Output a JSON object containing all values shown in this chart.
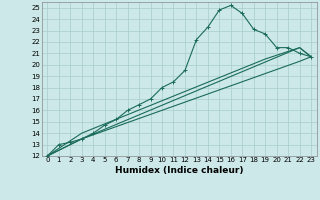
{
  "xlabel": "Humidex (Indice chaleur)",
  "xlim": [
    -0.5,
    23.5
  ],
  "ylim": [
    12,
    25.5
  ],
  "xticks": [
    0,
    1,
    2,
    3,
    4,
    5,
    6,
    7,
    8,
    9,
    10,
    11,
    12,
    13,
    14,
    15,
    16,
    17,
    18,
    19,
    20,
    21,
    22,
    23
  ],
  "yticks": [
    12,
    13,
    14,
    15,
    16,
    17,
    18,
    19,
    20,
    21,
    22,
    23,
    24,
    25
  ],
  "bg_color": "#cce8e8",
  "grid_color": "#a8cccc",
  "line_color": "#1a6b5a",
  "line1_x": [
    0,
    1,
    2,
    3,
    4,
    5,
    6,
    7,
    8,
    9,
    10,
    11,
    12,
    13,
    14,
    15,
    16,
    17,
    18,
    19,
    20,
    21,
    22,
    23
  ],
  "line1_y": [
    12,
    13,
    13.2,
    13.5,
    14,
    14.7,
    15.2,
    16,
    16.5,
    17,
    18,
    18.5,
    19.5,
    22.2,
    23.3,
    24.8,
    25.2,
    24.5,
    23.1,
    22.7,
    21.5,
    21.5,
    21,
    20.7
  ],
  "line2_x": [
    0,
    3,
    22,
    23
  ],
  "line2_y": [
    12,
    13.5,
    21.5,
    20.7
  ],
  "line3_x": [
    0,
    3,
    22,
    23
  ],
  "line3_y": [
    12,
    13.5,
    20.3,
    20.7
  ],
  "line4_x": [
    0,
    3,
    19,
    22,
    23
  ],
  "line4_y": [
    12,
    14,
    20.5,
    21.5,
    20.7
  ]
}
